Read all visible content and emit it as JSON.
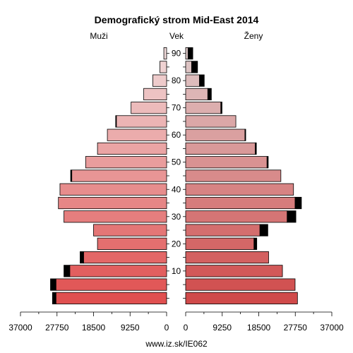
{
  "chart_data": {
    "type": "bar",
    "title": "Demografický strom Mid-East 2014",
    "left_label": "Muži",
    "center_label": "Vek",
    "right_label": "Ženy",
    "footer": "www.iz.sk/IE062",
    "xlim": [
      0,
      37000
    ],
    "x_tick_labels": [
      "37000",
      "27750",
      "18500",
      "9250",
      "0"
    ],
    "x_tick_labels_right": [
      "0",
      "9250",
      "18500",
      "27750",
      "37000"
    ],
    "age_tick_labels": [
      "90",
      "80",
      "70",
      "60",
      "50",
      "40",
      "30",
      "20",
      "10"
    ],
    "age_groups": [
      "0-4",
      "5-9",
      "10-14",
      "15-19",
      "20-24",
      "25-29",
      "30-34",
      "35-39",
      "40-44",
      "45-49",
      "50-54",
      "55-59",
      "60-64",
      "65-69",
      "70-74",
      "75-79",
      "80-84",
      "85-89",
      "90-94"
    ],
    "series": [
      {
        "name": "Muži",
        "values": [
          28000,
          28000,
          24500,
          21000,
          17500,
          18500,
          26000,
          27400,
          27000,
          24000,
          20500,
          17500,
          15000,
          12700,
          9000,
          5800,
          3500,
          1700,
          700
        ]
      },
      {
        "name": "Muži black",
        "values": [
          900,
          1400,
          1500,
          900,
          0,
          0,
          0,
          0,
          0,
          300,
          0,
          0,
          0,
          200,
          0,
          0,
          0,
          0,
          0
        ]
      },
      {
        "name": "Ženy",
        "values": [
          28300,
          27700,
          24500,
          21000,
          17300,
          18800,
          25700,
          27700,
          27300,
          24100,
          20600,
          17600,
          15000,
          12700,
          8900,
          5600,
          3500,
          1500,
          600
        ]
      },
      {
        "name": "Ženy black",
        "values": [
          0,
          0,
          0,
          0,
          700,
          2000,
          2200,
          1600,
          0,
          0,
          300,
          300,
          200,
          0,
          300,
          900,
          1200,
          1500,
          1200
        ]
      }
    ],
    "colors": {
      "young": "#e05050",
      "old": "#f0dada",
      "accent_black": "#000000"
    }
  }
}
